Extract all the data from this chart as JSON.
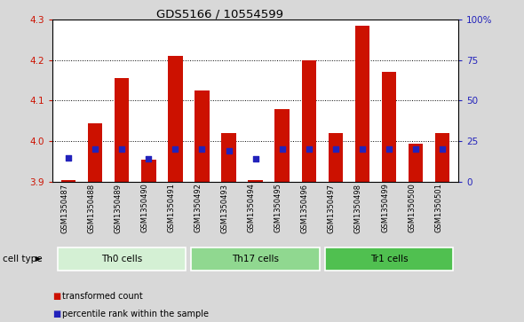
{
  "title": "GDS5166 / 10554599",
  "samples": [
    "GSM1350487",
    "GSM1350488",
    "GSM1350489",
    "GSM1350490",
    "GSM1350491",
    "GSM1350492",
    "GSM1350493",
    "GSM1350494",
    "GSM1350495",
    "GSM1350496",
    "GSM1350497",
    "GSM1350498",
    "GSM1350499",
    "GSM1350500",
    "GSM1350501"
  ],
  "red_values": [
    3.905,
    4.045,
    4.155,
    3.955,
    4.21,
    4.125,
    4.02,
    3.905,
    4.08,
    4.2,
    4.02,
    4.285,
    4.17,
    3.995,
    4.02
  ],
  "blue_percentile": [
    15,
    20,
    20,
    14,
    20,
    20,
    19,
    14,
    20,
    20,
    20,
    20,
    20,
    20,
    20
  ],
  "cell_groups": [
    {
      "label": "Th0 cells",
      "start": 0,
      "end": 4,
      "color": "#d4f0d4"
    },
    {
      "label": "Th17 cells",
      "start": 5,
      "end": 9,
      "color": "#90d890"
    },
    {
      "label": "Tr1 cells",
      "start": 10,
      "end": 14,
      "color": "#50c050"
    }
  ],
  "ylim_left": [
    3.9,
    4.3
  ],
  "ylim_right": [
    0,
    100
  ],
  "yticks_left": [
    3.9,
    4.0,
    4.1,
    4.2,
    4.3
  ],
  "yticks_right": [
    0,
    25,
    50,
    75,
    100
  ],
  "ytick_labels_right": [
    "0",
    "25",
    "50",
    "75",
    "100%"
  ],
  "bar_color": "#cc1100",
  "dot_color": "#2222bb",
  "bar_width": 0.55,
  "background_color": "#d8d8d8",
  "plot_bg_color": "#ffffff",
  "legend_red": "transformed count",
  "legend_blue": "percentile rank within the sample",
  "cell_type_label": "cell type"
}
